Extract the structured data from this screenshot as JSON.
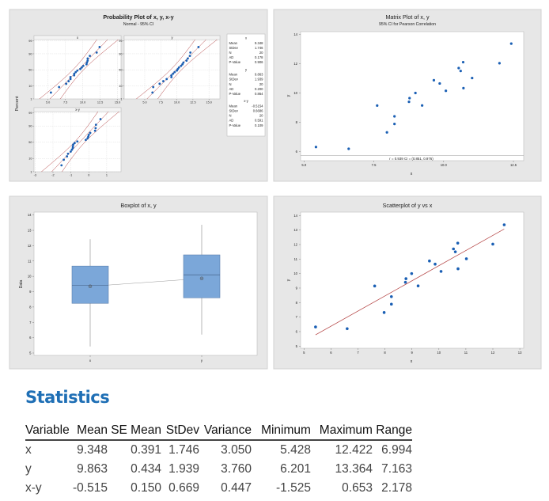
{
  "chart_data": [
    {
      "type": "probability",
      "title": "Probability Plot of x, y, x-y",
      "subtitle": "Normal - 95% CI",
      "ylabel": "Percent",
      "yticks": [
        "1",
        "10",
        "50",
        "90",
        "99"
      ],
      "colors": {
        "points": "#1a5fb4",
        "lines": "#b03a3a"
      },
      "panels": [
        {
          "label": "x",
          "xticks": [
            "5.0",
            "7.5",
            "10.0",
            "12.5",
            "15.0"
          ],
          "values": [
            5.428,
            6.6,
            7.62,
            7.97,
            8.24,
            8.24,
            8.76,
            8.78,
            8.99,
            9.23,
            9.65,
            9.86,
            10.08,
            10.54,
            10.61,
            10.7,
            10.71,
            11.02,
            12.0,
            12.422
          ]
        },
        {
          "label": "y",
          "xticks": [
            "5.0",
            "7.5",
            "10.0",
            "12.5",
            "15.0"
          ],
          "values": [
            6.32,
            6.201,
            9.145,
            7.317,
            8.41,
            7.89,
            9.4,
            9.65,
            10.0,
            9.15,
            10.87,
            10.65,
            10.15,
            11.7,
            11.5,
            12.1,
            10.33,
            11.02,
            12.03,
            13.364
          ]
        },
        {
          "label": "x-y",
          "xticks": [
            "-3",
            "-2",
            "-1",
            "0",
            "1"
          ],
          "values": [
            -0.89,
            0.4,
            -1.525,
            0.653,
            -0.17,
            0.35,
            -0.64,
            -0.87,
            -1.01,
            0.08,
            -1.22,
            -0.79,
            -0.07,
            -1.16,
            -0.89,
            -1.4,
            0.38,
            0.0,
            -0.03,
            -0.942
          ]
        }
      ],
      "stats": [
        {
          "name": "x",
          "rows": [
            [
              "Mean",
              "9.348"
            ],
            [
              "StDev",
              "1.746"
            ],
            [
              "N",
              "20"
            ],
            [
              "AD",
              "0.178"
            ],
            [
              "P-Value",
              "0.906"
            ]
          ],
          "mean": 9.348,
          "sd": 1.746,
          "n": 20
        },
        {
          "name": "y",
          "rows": [
            [
              "Mean",
              "9.863"
            ],
            [
              "StDev",
              "1.939"
            ],
            [
              "N",
              "20"
            ],
            [
              "AD",
              "0.200"
            ],
            [
              "P-Value",
              "0.864"
            ]
          ],
          "mean": 9.863,
          "sd": 1.939,
          "n": 20
        },
        {
          "name": "x-y",
          "rows": [
            [
              "Mean",
              "-0.5154"
            ],
            [
              "StDev",
              "0.6686"
            ],
            [
              "N",
              "20"
            ],
            [
              "AD",
              "0.591"
            ],
            [
              "P-Value",
              "0.109"
            ]
          ],
          "mean": -0.5154,
          "sd": 0.6686,
          "n": 20
        }
      ]
    },
    {
      "type": "scatter",
      "title": "Matrix Plot of x, y",
      "subtitle": "95% CI for Pearson Correlation",
      "xlabel": "x",
      "ylabel": "y",
      "xticks": [
        "5.0",
        "7.5",
        "10.0",
        "12.5"
      ],
      "yticks": [
        "6",
        "8",
        "10",
        "12",
        "14"
      ],
      "annotation": "r = 0.939  CI = (0.851, 0.976)",
      "x": [
        5.428,
        6.6,
        7.62,
        7.97,
        8.24,
        8.24,
        8.76,
        8.78,
        8.99,
        9.23,
        9.65,
        9.86,
        10.08,
        10.54,
        10.61,
        10.7,
        10.71,
        11.02,
        12.0,
        12.422
      ],
      "y": [
        6.32,
        6.201,
        9.145,
        7.317,
        8.41,
        7.89,
        9.4,
        9.65,
        10.0,
        9.15,
        10.87,
        10.65,
        10.15,
        11.7,
        11.5,
        12.1,
        10.33,
        11.02,
        12.03,
        13.364
      ],
      "colors": {
        "points": "#1a5fb4"
      }
    },
    {
      "type": "boxplot",
      "title": "Boxplot of x, y",
      "ylabel": "Data",
      "yticks": [
        "5",
        "6",
        "7",
        "8",
        "9",
        "10",
        "11",
        "12",
        "13",
        "14"
      ],
      "categories": [
        "x",
        "y"
      ],
      "boxes": [
        {
          "min": 5.428,
          "q1": 8.24,
          "median": 9.42,
          "q3": 10.67,
          "max": 12.422,
          "mean": 9.348
        },
        {
          "min": 6.201,
          "q1": 8.6,
          "median": 10.1,
          "q3": 11.4,
          "max": 13.364,
          "mean": 9.863
        }
      ],
      "colors": {
        "box": "#7ba7d9",
        "edge": "#5a7fae"
      }
    },
    {
      "type": "scatter",
      "title": "Scatterplot of y vs x",
      "xlabel": "x",
      "ylabel": "y",
      "xticks": [
        "5",
        "6",
        "7",
        "8",
        "9",
        "10",
        "11",
        "12",
        "13"
      ],
      "yticks": [
        "5",
        "6",
        "7",
        "8",
        "9",
        "10",
        "11",
        "12",
        "13",
        "14"
      ],
      "x": [
        5.428,
        6.6,
        7.62,
        7.97,
        8.24,
        8.24,
        8.76,
        8.78,
        8.99,
        9.23,
        9.65,
        9.86,
        10.08,
        10.54,
        10.61,
        10.7,
        10.71,
        11.02,
        12.0,
        12.422
      ],
      "y": [
        6.32,
        6.201,
        9.145,
        7.317,
        8.41,
        7.89,
        9.4,
        9.65,
        10.0,
        9.15,
        10.87,
        10.65,
        10.15,
        11.7,
        11.5,
        12.1,
        10.33,
        11.02,
        12.03,
        13.364
      ],
      "fit_line": {
        "intercept": 0.114,
        "slope": 1.043
      },
      "colors": {
        "points": "#1a5fb4",
        "fit": "#b03a3a"
      }
    }
  ],
  "statistics": {
    "title": "Statistics",
    "columns": [
      "Variable",
      "Mean",
      "SE Mean",
      "StDev",
      "Variance",
      "Minimum",
      "Maximum",
      "Range"
    ],
    "rows": [
      [
        "x",
        "9.348",
        "0.391",
        "1.746",
        "3.050",
        "5.428",
        "12.422",
        "6.994"
      ],
      [
        "y",
        "9.863",
        "0.434",
        "1.939",
        "3.760",
        "6.201",
        "13.364",
        "7.163"
      ],
      [
        "x-y",
        "-0.515",
        "0.150",
        "0.669",
        "0.447",
        "-1.525",
        "0.653",
        "2.178"
      ]
    ]
  }
}
